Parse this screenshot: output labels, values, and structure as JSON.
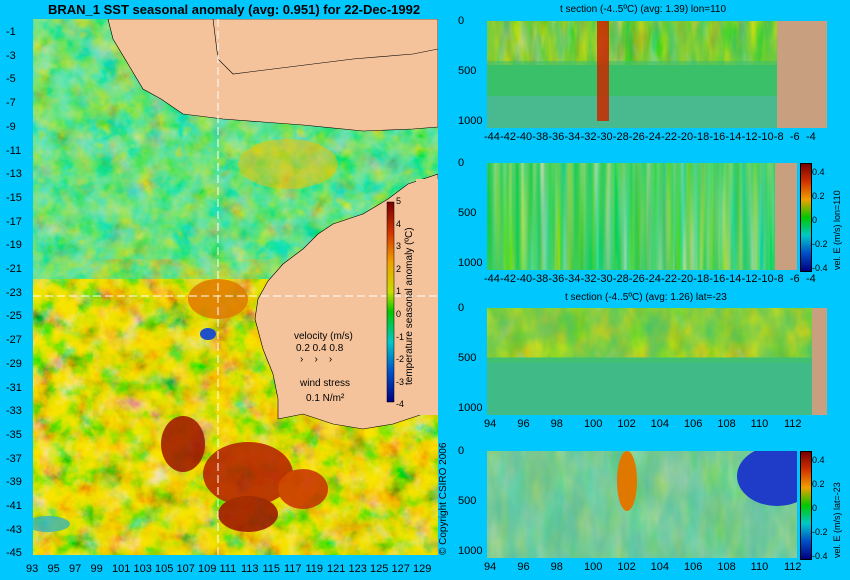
{
  "title": "BRAN_1  SST seasonal anomaly (avg: 0.951) for 22-Dec-1992",
  "map": {
    "lat_ticks": [
      "-1",
      "-3",
      "-5",
      "-7",
      "-9",
      "-11",
      "-13",
      "-15",
      "-17",
      "-19",
      "-21",
      "-23",
      "-25",
      "-27",
      "-29",
      "-31",
      "-33",
      "-35",
      "-37",
      "-39",
      "-41",
      "-43",
      "-45"
    ],
    "lon_ticks": [
      "93",
      "95",
      "97",
      "99",
      "101",
      "103",
      "105",
      "107",
      "109",
      "111",
      "113",
      "115",
      "117",
      "119",
      "121",
      "123",
      "125",
      "127",
      "129"
    ],
    "velocity_label": "velocity (m/s)",
    "velocity_scale": "0.2 0.4 0.8",
    "wind_label": "wind stress",
    "wind_scale": "0.1 N/m²",
    "colorbar_ticks": [
      "5",
      "4",
      "3",
      "2",
      "1",
      "0",
      "-1",
      "-2",
      "-3",
      "-4"
    ],
    "colorbar_label": "temperature seasonal anomaly (ºC)",
    "copyright": "© Copyright CSIRO 2006",
    "crosshair_lat": -23,
    "crosshair_lon": 110,
    "colors": {
      "land": "#f5c39b",
      "ocean_bg": "#00c8ff",
      "warm": "#b41e00",
      "cool": "#3cb4b4"
    }
  },
  "panels": [
    {
      "title": "t section (-4..5ºC) (avg: 1.39) lon=110",
      "y_ticks": [
        "0",
        "500",
        "1000"
      ],
      "x_ticks": [
        "-44",
        "-42",
        "-40",
        "-38",
        "-36",
        "-34",
        "-32",
        "-30",
        "-28",
        "-26",
        "-24",
        "-22",
        "-20",
        "-18",
        "-16",
        "-14",
        "-12",
        "-10",
        "-8",
        "-6",
        "-4"
      ]
    },
    {
      "title": "",
      "y_ticks": [
        "0",
        "500",
        "1000"
      ],
      "x_ticks": [
        "-44",
        "-42",
        "-40",
        "-38",
        "-36",
        "-34",
        "-32",
        "-30",
        "-28",
        "-26",
        "-24",
        "-22",
        "-20",
        "-18",
        "-16",
        "-14",
        "-12",
        "-10",
        "-8",
        "-6",
        "-4"
      ],
      "cb_ticks": [
        "0.4",
        "0.2",
        "0",
        "-0.2",
        "-0.4"
      ],
      "cb_label": "vel. E (m/s) lon=110"
    },
    {
      "title": "t section (-4..5ºC) (avg: 1.26) lat=-23",
      "y_ticks": [
        "0",
        "500",
        "1000"
      ],
      "x_ticks": [
        "94",
        "96",
        "98",
        "100",
        "102",
        "104",
        "106",
        "108",
        "110",
        "112"
      ]
    },
    {
      "title": "",
      "y_ticks": [
        "0",
        "500",
        "1000"
      ],
      "x_ticks": [
        "94",
        "96",
        "98",
        "100",
        "102",
        "104",
        "106",
        "108",
        "110",
        "112"
      ],
      "cb_ticks": [
        "0.4",
        "0.2",
        "0",
        "-0.2",
        "-0.4"
      ],
      "cb_label": "vel. E (m/s) lat=-23"
    }
  ],
  "chart_data": [
    {
      "type": "heatmap",
      "title": "BRAN_1  SST seasonal anomaly (avg: 0.951) for 22-Dec-1992",
      "xlabel": "",
      "ylabel": "",
      "xlim": [
        93,
        130
      ],
      "ylim": [
        -45,
        0
      ],
      "colorbar_range": [
        -4,
        5
      ],
      "colorbar_label": "temperature seasonal anomaly (ºC)"
    },
    {
      "type": "heatmap",
      "title": "t section (-4..5ºC) (avg: 1.39) lon=110",
      "xlim": [
        -45,
        -3
      ],
      "ylim": [
        1050,
        0
      ],
      "colorbar_range": [
        -4,
        5
      ]
    },
    {
      "type": "heatmap",
      "title": "",
      "xlim": [
        -45,
        -3
      ],
      "ylim": [
        1050,
        0
      ],
      "colorbar_range": [
        -0.4,
        0.4
      ],
      "colorbar_label": "vel. E (m/s) lon=110"
    },
    {
      "type": "heatmap",
      "title": "t section (-4..5ºC) (avg: 1.26) lat=-23",
      "xlim": [
        93,
        114
      ],
      "ylim": [
        1050,
        0
      ],
      "colorbar_range": [
        -4,
        5
      ]
    },
    {
      "type": "heatmap",
      "title": "",
      "xlim": [
        93,
        114
      ],
      "ylim": [
        1050,
        0
      ],
      "colorbar_range": [
        -0.4,
        0.4
      ],
      "colorbar_label": "vel. E (m/s) lat=-23"
    }
  ]
}
